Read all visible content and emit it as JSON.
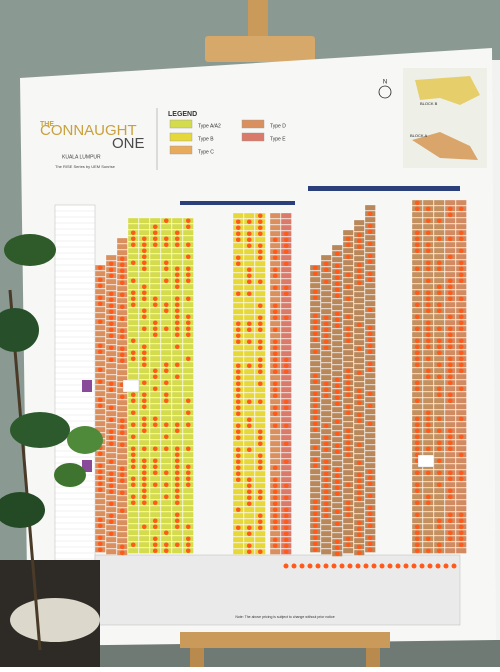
{
  "header": {
    "title_small": "THE",
    "title_line1": "CONNAUGHT",
    "title_line2": "ONE",
    "location": "KUALA LUMPUR",
    "tagline": "The RISE Series by UEM Sunrise"
  },
  "legend": {
    "title": "LEGEND",
    "items": [
      {
        "label": "Type A/A2",
        "color": "#d4dc4c"
      },
      {
        "label": "Type B",
        "color": "#e6d83a"
      },
      {
        "label": "Type C",
        "color": "#e8ab5c"
      },
      {
        "label": "Type D",
        "color": "#d9905e"
      },
      {
        "label": "Type E",
        "color": "#d97a6a"
      }
    ]
  },
  "keymap": {
    "north": "N",
    "block_b": "BLOCK B",
    "block_a": "BLOCK A"
  },
  "note": "Note: The above pricing is subject to change without prior notice"
}
